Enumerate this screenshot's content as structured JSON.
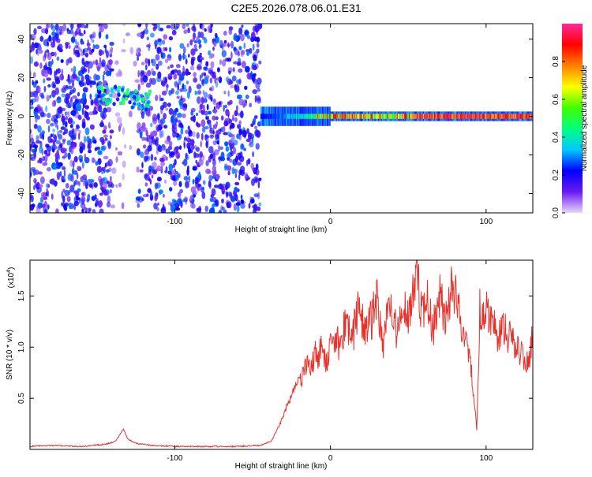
{
  "title": "C2E5.2026.078.06.01.E31",
  "colors": {
    "snr_line": "#e8312b",
    "axis": "#000000"
  },
  "chart_data": [
    {
      "type": "heatmap",
      "xlabel": "Height of straight line (km)",
      "ylabel": "Frequency (Hz)",
      "xlim": [
        -193,
        130
      ],
      "ylim": [
        -50,
        48
      ],
      "xticks": [
        -100,
        0,
        100
      ],
      "xtick_labels": [
        "-100",
        "0",
        "100"
      ],
      "yticks": [
        -40,
        -20,
        0,
        20,
        40
      ],
      "ytick_labels": [
        "-40",
        "-20",
        "0",
        "20",
        "40"
      ],
      "colorbar": {
        "label": "Normalized spectral amplitude",
        "range": [
          0,
          1
        ],
        "ticks": [
          0.0,
          0.2,
          0.4,
          0.6,
          0.8
        ],
        "tick_labels": [
          "0.0",
          "0.2",
          "0.4",
          "0.6",
          "0.8"
        ],
        "colormap": [
          "#e6d8f8",
          "#6a1bf0",
          "#0000ff",
          "#00c8ff",
          "#00ff80",
          "#40ff00",
          "#ffff00",
          "#ff8000",
          "#ff0000",
          "#ff2a9a"
        ]
      },
      "regions": [
        {
          "name": "noisy-left",
          "x_range": [
            -193,
            -45
          ],
          "freq_range": [
            -50,
            48
          ],
          "amplitude": 0.15
        },
        {
          "name": "gap-band",
          "x_range": [
            -140,
            -124
          ],
          "freq_range": [
            -50,
            48
          ],
          "amplitude": 0.05
        },
        {
          "name": "blob-left",
          "x_center": -133,
          "freq_center": 10,
          "amplitude": 0.35
        },
        {
          "name": "narrowband-signal",
          "x_range": [
            -45,
            130
          ],
          "freq_center": 0,
          "amplitude": 0.9
        }
      ]
    },
    {
      "type": "line",
      "xlabel": "Height of straight line (km)",
      "ylabel": "SNR (10 * v/v)",
      "scale_label": "(x10",
      "scale_exp": "4",
      "scale_close": ")",
      "xlim": [
        -193,
        130
      ],
      "ylim": [
        0,
        1.85
      ],
      "xticks": [
        -100,
        0,
        100
      ],
      "xtick_labels": [
        "-100",
        "0",
        "100"
      ],
      "yticks": [
        0.5,
        1.0,
        1.5
      ],
      "ytick_labels": [
        "0.5",
        "1.0",
        "1.5"
      ],
      "series": [
        {
          "name": "SNR",
          "x": [
            -193,
            -180,
            -160,
            -145,
            -138,
            -133,
            -130,
            -125,
            -115,
            -100,
            -80,
            -60,
            -45,
            -38,
            -34,
            -30,
            -26,
            -22,
            -18,
            -14,
            -10,
            -6,
            -2,
            2,
            6,
            10,
            14,
            18,
            22,
            26,
            30,
            34,
            38,
            42,
            46,
            50,
            54,
            56,
            58,
            62,
            66,
            70,
            74,
            78,
            80,
            84,
            88,
            92,
            94,
            96,
            100,
            104,
            108,
            112,
            116,
            120,
            124,
            128,
            130
          ],
          "y": [
            0.03,
            0.04,
            0.03,
            0.05,
            0.08,
            0.2,
            0.1,
            0.06,
            0.04,
            0.03,
            0.03,
            0.03,
            0.04,
            0.08,
            0.2,
            0.35,
            0.5,
            0.65,
            0.75,
            0.85,
            0.95,
            1.0,
            0.9,
            1.15,
            1.05,
            1.35,
            1.1,
            1.45,
            1.2,
            1.3,
            1.5,
            1.05,
            1.5,
            1.2,
            1.45,
            1.3,
            1.6,
            1.85,
            1.4,
            1.5,
            1.2,
            1.55,
            1.35,
            1.65,
            1.55,
            1.3,
            1.1,
            0.6,
            0.18,
            1.4,
            1.45,
            1.35,
            1.15,
            1.2,
            1.1,
            1.05,
            0.95,
            0.85,
            1.25
          ]
        }
      ]
    }
  ]
}
